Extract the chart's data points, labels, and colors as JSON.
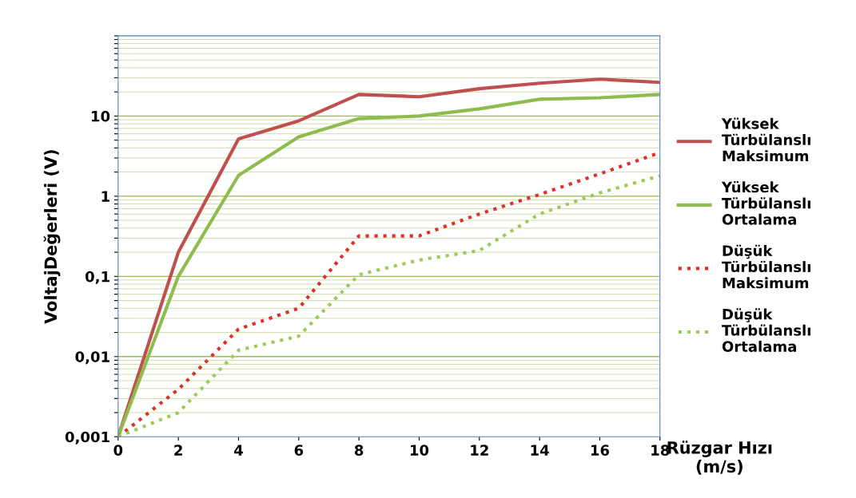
{
  "chart_data": {
    "type": "line",
    "xlabel": "Rüzgar Hızı (m/s)",
    "ylabel": "VoltajDeğerleri (V)",
    "log": "y",
    "grid": "y",
    "legend": "right",
    "x": [
      0,
      2,
      4,
      6,
      8,
      10,
      12,
      14,
      16,
      18
    ],
    "xlim": [
      0,
      18
    ],
    "xticks": [
      0,
      2,
      4,
      6,
      8,
      10,
      12,
      14,
      16,
      18
    ],
    "ylim": [
      0.001,
      100
    ],
    "yticks": [
      {
        "value": 0.001,
        "label": "0,001"
      },
      {
        "value": 0.01,
        "label": "0,01"
      },
      {
        "value": 0.1,
        "label": "0,1"
      },
      {
        "value": 1,
        "label": "1"
      },
      {
        "value": 10,
        "label": "10"
      },
      {
        "value": 100,
        "label": null
      },
      {
        "value": 0.002,
        "label": null
      },
      {
        "value": 0.003,
        "label": null
      },
      {
        "value": 0.004,
        "label": null
      },
      {
        "value": 0.005,
        "label": null
      },
      {
        "value": 0.006,
        "label": null
      },
      {
        "value": 0.007,
        "label": null
      },
      {
        "value": 0.008,
        "label": null
      },
      {
        "value": 0.009,
        "label": null
      },
      {
        "value": 0.02,
        "label": null
      },
      {
        "value": 0.03,
        "label": null
      },
      {
        "value": 0.04,
        "label": null
      },
      {
        "value": 0.05,
        "label": null
      },
      {
        "value": 0.06,
        "label": null
      },
      {
        "value": 0.07,
        "label": null
      },
      {
        "value": 0.08,
        "label": null
      },
      {
        "value": 0.09,
        "label": null
      },
      {
        "value": 0.2,
        "label": null
      },
      {
        "value": 0.3,
        "label": null
      },
      {
        "value": 0.4,
        "label": null
      },
      {
        "value": 0.5,
        "label": null
      },
      {
        "value": 0.6,
        "label": null
      },
      {
        "value": 0.7,
        "label": null
      },
      {
        "value": 0.8,
        "label": null
      },
      {
        "value": 0.9,
        "label": null
      },
      {
        "value": 2,
        "label": null
      },
      {
        "value": 3,
        "label": null
      },
      {
        "value": 4,
        "label": null
      },
      {
        "value": 5,
        "label": null
      },
      {
        "value": 6,
        "label": null
      },
      {
        "value": 7,
        "label": null
      },
      {
        "value": 8,
        "label": null
      },
      {
        "value": 9,
        "label": null
      },
      {
        "value": 20,
        "label": null
      },
      {
        "value": 30,
        "label": null
      },
      {
        "value": 40,
        "label": null
      },
      {
        "value": 50,
        "label": null
      },
      {
        "value": 60,
        "label": null
      },
      {
        "value": 70,
        "label": null
      },
      {
        "value": 80,
        "label": null
      },
      {
        "value": 90,
        "label": null
      }
    ],
    "series": [
      {
        "name": "Yüksek Türbülanslı Maksimum",
        "color": "#c0504d",
        "line_style": "solid",
        "values": [
          0.001,
          0.2,
          5.2,
          8.7,
          18.6,
          17.4,
          21.9,
          25.7,
          28.8,
          26.3
        ]
      },
      {
        "name": "Yüksek Türbülanslı Ortalama",
        "color": "#8fbc4f",
        "line_style": "solid",
        "values": [
          0.001,
          0.1,
          1.82,
          5.5,
          9.3,
          10,
          12.3,
          16.2,
          16.9,
          18.6
        ]
      },
      {
        "name": "Düşük Türbülanslı Maksimum",
        "color": "#e0302a",
        "line_style": "dotted",
        "values": [
          0.001,
          0.0039,
          0.022,
          0.04,
          0.32,
          0.32,
          0.6,
          1.05,
          1.9,
          3.5
        ]
      },
      {
        "name": "Düşük Türbülanslı Ortalama",
        "color": "#9bcc5a",
        "line_style": "dotted",
        "values": [
          0.001,
          0.002,
          0.012,
          0.018,
          0.105,
          0.16,
          0.21,
          0.6,
          1.1,
          1.8
        ]
      }
    ]
  }
}
